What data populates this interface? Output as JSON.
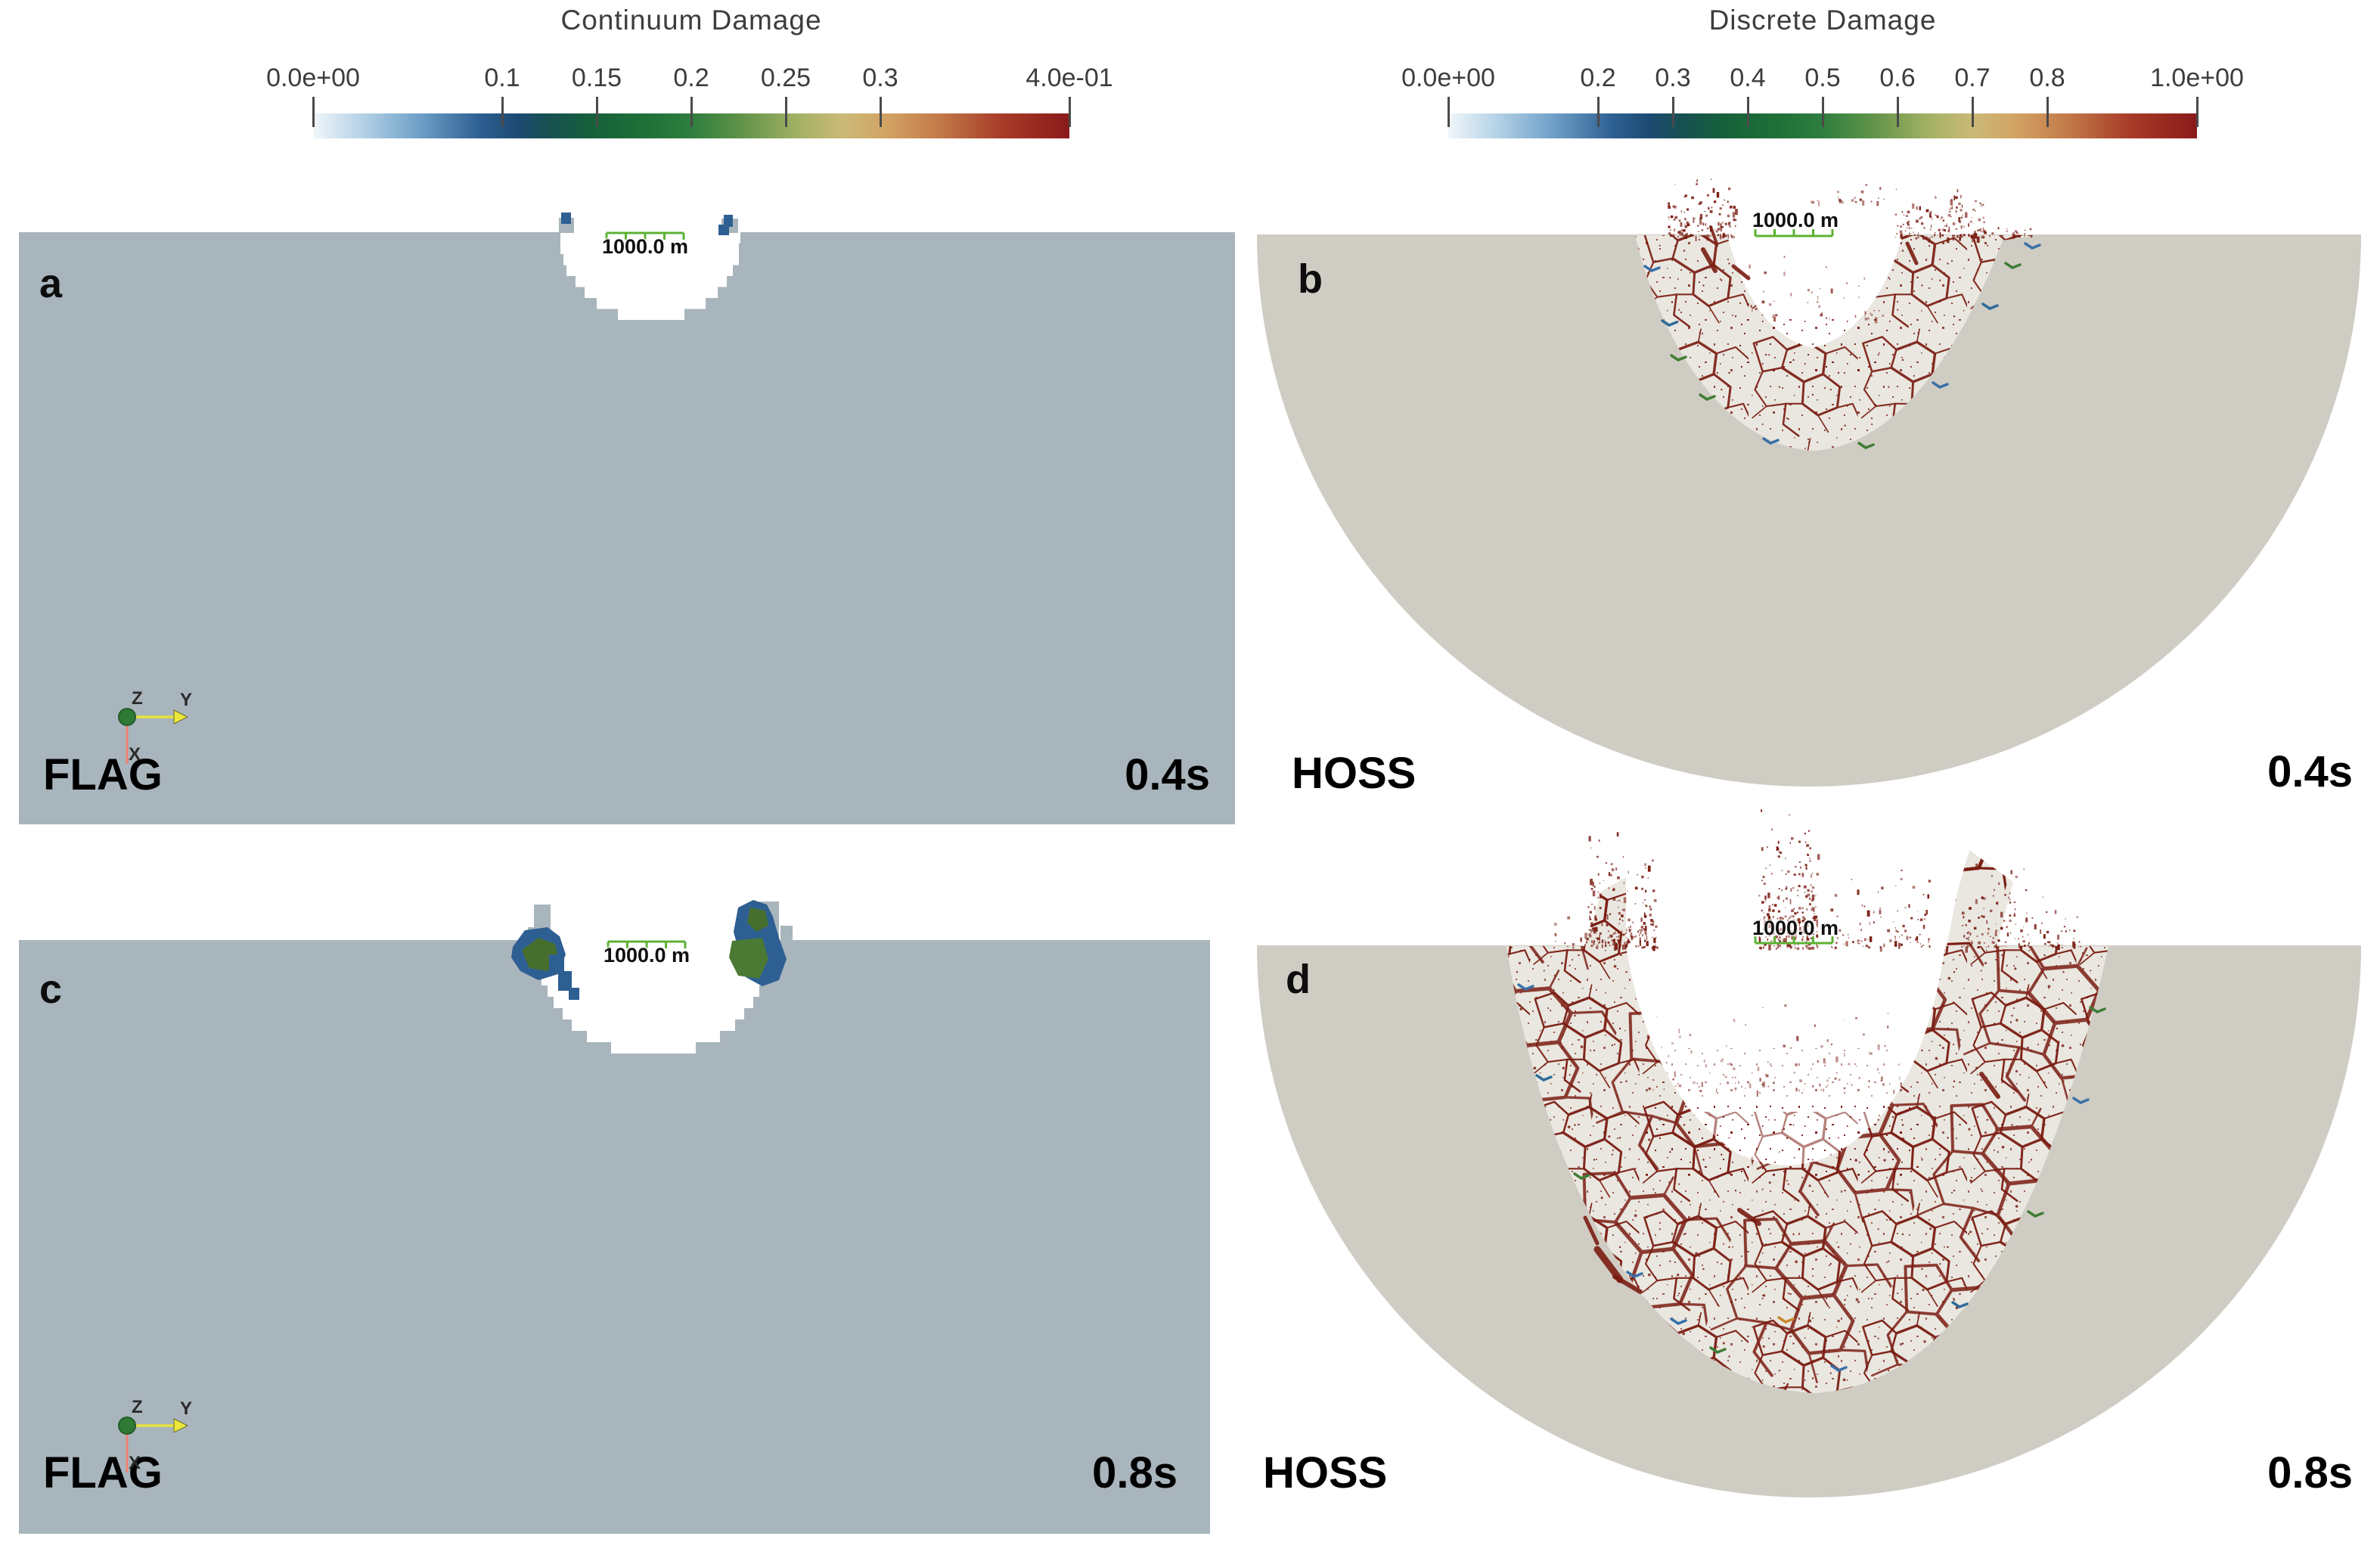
{
  "colorbars": {
    "continuum": {
      "title": "Continuum Damage",
      "ticks": [
        "0.0e+00",
        "0.1",
        "0.15",
        "0.2",
        "0.25",
        "0.3",
        "4.0e-01"
      ]
    },
    "discrete": {
      "title": "Discrete Damage",
      "ticks": [
        "0.0e+00",
        "0.2",
        "0.3",
        "0.4",
        "0.5",
        "0.6",
        "0.7",
        "0.8",
        "1.0e+00"
      ]
    }
  },
  "panels": {
    "a": {
      "label": "a",
      "code": "FLAG",
      "time": "0.4s",
      "scale_bar": "1000.0 m"
    },
    "b": {
      "label": "b",
      "code": "HOSS",
      "time": "0.4s",
      "scale_bar": "1000.0 m"
    },
    "c": {
      "label": "c",
      "code": "FLAG",
      "time": "0.8s",
      "scale_bar": "1000.0 m"
    },
    "d": {
      "label": "d",
      "code": "HOSS",
      "time": "0.8s",
      "scale_bar": "1000.0 m"
    }
  },
  "axis_triad": {
    "x": "X",
    "y": "Y",
    "z": "Z"
  },
  "colors": {
    "flag_material": "#a9b5bc",
    "hoss_material": "#cfccc3",
    "damaged_zone": "#e9e7e0",
    "crack_red": "#7a1c12",
    "damage_blue": "#2e5f92",
    "damage_green": "#4a7a33",
    "scalebar_green": "#5cb233",
    "colormap_low": "#f0f6f9",
    "colormap_mid": "#2e7e3e",
    "colormap_high": "#8a1a1a"
  }
}
